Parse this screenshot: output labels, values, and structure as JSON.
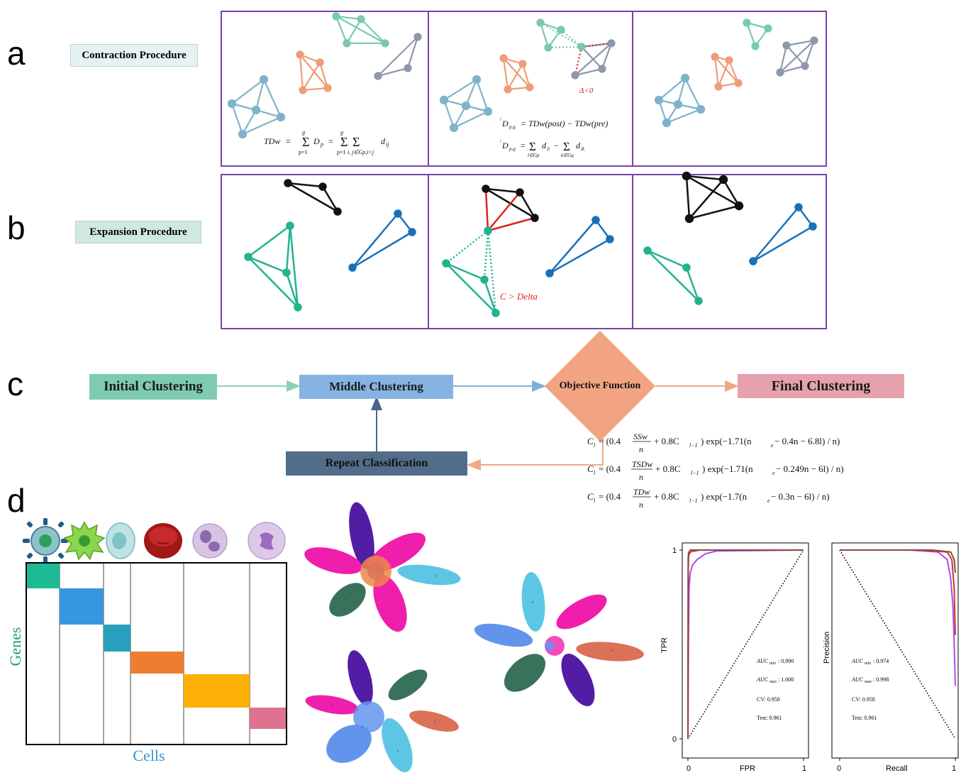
{
  "panels": {
    "a": "a",
    "b": "b",
    "c": "c",
    "d": "d"
  },
  "panel_a": {
    "label": "Contraction Procedure",
    "tdw_formula": "TDw = Σ D_p = Σ Σ d_ij",
    "tdw_formula_parts": {
      "lhs": "TDw",
      "eq": "=",
      "sum_lower_p": "p=1",
      "sum_upper_g": "g",
      "d_p": "D",
      "d_p_sub": "p",
      "sum_lower_ij": "i, j∈Gp,i<j",
      "d_ij": "d",
      "d_ij_sub": "ij"
    },
    "delta_note": "Δ<0",
    "dpq_line1": "D_p,q = TDw(post) − TDw(pre)",
    "dpq_line1_parts": {
      "sup": "1",
      "d": "D",
      "sub": "p,q",
      "rhs": "= TDw(post) − TDw(pre)"
    },
    "dpq_line2_parts": {
      "sup": "1",
      "d": "D",
      "sub": "p,q",
      "eq": "=",
      "sum_l": "l∈Gp",
      "d_il": "d",
      "d_il_sub": "il",
      "minus": "−",
      "sum_k": "k∈Gq",
      "d_ik": "d",
      "d_ik_sub": "ik"
    }
  },
  "panel_b": {
    "label": "Expansion Procedure",
    "note": "C > Delta"
  },
  "panel_c": {
    "initial": "Initial Clustering",
    "middle": "Middle Clustering",
    "objective": "Objective Function",
    "final": "Final Clustering",
    "repeat": "Repeat Classification",
    "formulas": [
      {
        "lhs": "C",
        "lhs_sub": "l",
        "frac_num": "SSw",
        "frac_den": "n",
        "pre": "= (0.4",
        "mid": "+ 0.8C",
        "mid_sub": "l−1",
        "post": ") exp(−1.71(n",
        "post_sub": "e",
        "tail": " − 0.4n − 6.8l) / n)"
      },
      {
        "lhs": "C",
        "lhs_sub": "l",
        "frac_num": "TSDw",
        "frac_den": "n",
        "pre": "= (0.4",
        "mid": "+ 0.8C",
        "mid_sub": "l−1",
        "post": ") exp(−1.71(n",
        "post_sub": "e",
        "tail": " − 0.249n − 6l) / n)"
      },
      {
        "lhs": "C",
        "lhs_sub": "l",
        "frac_num": "TDw",
        "frac_den": "n",
        "pre": "= (0.4",
        "mid": "+ 0.8C",
        "mid_sub": "l−1",
        "post": ") exp(−1.7(n",
        "post_sub": "e",
        "tail": " − 0.3n − 6l) / n)"
      }
    ]
  },
  "panel_d": {
    "heatmap": {
      "ylabel": "Genes",
      "xlabel": "Cells",
      "block_colors": [
        "#1dbb95",
        "#3797de",
        "#2a9fbd",
        "#ee7d32",
        "#fdb005",
        "#de7291"
      ]
    },
    "cell_icons": [
      "t-cell-icon",
      "dendritic-cell-icon",
      "stem-cell-icon",
      "red-blood-cell-icon",
      "granulocyte-icon",
      "monocyte-icon"
    ],
    "umap_labels": [
      "0",
      "1",
      "2",
      "3",
      "4",
      "5",
      "6",
      "7"
    ],
    "cluster_colors": [
      "#f012a8",
      "#4a10a0",
      "#2f6b52",
      "#55c3e3",
      "#5b8fec",
      "#da6a4e",
      "#e78341"
    ]
  },
  "chart_data": [
    {
      "type": "line",
      "title": "",
      "xlabel": "FPR",
      "ylabel": "TPR",
      "xlim": [
        0,
        1
      ],
      "ylim": [
        0,
        1
      ],
      "x_ticks": [
        "0",
        "1"
      ],
      "y_ticks": [
        "0",
        "1"
      ],
      "series": [
        {
          "name": "diagonal",
          "style": "dotted",
          "color": "#000000",
          "x": [
            0,
            1
          ],
          "y": [
            0,
            1
          ]
        },
        {
          "name": "model-purple",
          "color": "#a94bf2",
          "x": [
            0,
            0.005,
            0.01,
            0.02,
            0.04,
            0.08,
            0.15,
            0.25,
            1
          ],
          "y": [
            0,
            0.55,
            0.8,
            0.88,
            0.92,
            0.95,
            0.98,
            0.995,
            1
          ]
        },
        {
          "name": "model-red",
          "color": "#d22f2f",
          "x": [
            0,
            0.003,
            0.006,
            0.02,
            0.1,
            1
          ],
          "y": [
            0,
            0.9,
            0.97,
            0.99,
            1,
            1
          ]
        },
        {
          "name": "model-brown",
          "color": "#8c4a3a",
          "x": [
            0,
            0.002,
            0.005,
            0.02,
            1
          ],
          "y": [
            0,
            0.95,
            0.985,
            1,
            1
          ]
        }
      ],
      "annotations": {
        "auc_min_label": "AUC",
        "auc_min_sub": "min",
        "auc_min_value": ": 0.990",
        "auc_max_label": "AUC",
        "auc_max_sub": "max",
        "auc_max_value": ": 1.000",
        "cv": "CV: 0.958",
        "test": "Test: 0.961"
      }
    },
    {
      "type": "line",
      "title": "",
      "xlabel": "Recall",
      "ylabel": "Precision",
      "xlim": [
        0,
        1
      ],
      "ylim": [
        0,
        1
      ],
      "x_ticks": [
        "0",
        "1"
      ],
      "series": [
        {
          "name": "diagonal",
          "style": "dotted",
          "color": "#000000",
          "x": [
            0,
            1
          ],
          "y": [
            1,
            0
          ]
        },
        {
          "name": "model-purple",
          "color": "#a94bf2",
          "x": [
            0,
            0.6,
            0.85,
            0.93,
            0.96,
            0.98,
            0.99,
            1.0
          ],
          "y": [
            1,
            1,
            0.99,
            0.95,
            0.85,
            0.7,
            0.5,
            0.28
          ]
        },
        {
          "name": "model-red",
          "color": "#d22f2f",
          "x": [
            0,
            0.7,
            0.93,
            0.97,
            0.99,
            1.0
          ],
          "y": [
            1,
            1,
            0.99,
            0.95,
            0.8,
            0.55
          ]
        },
        {
          "name": "model-brown",
          "color": "#8c4a3a",
          "x": [
            0,
            0.8,
            0.96,
            0.99,
            1.0
          ],
          "y": [
            1,
            1,
            0.99,
            0.95,
            0.88
          ]
        }
      ],
      "annotations": {
        "auc_min_label": "AUC",
        "auc_min_sub": "min",
        "auc_min_value": ": 0.974",
        "auc_max_label": "AUC",
        "auc_max_sub": "max",
        "auc_max_value": ": 0.998",
        "cv": "CV: 0.958",
        "test": "Test: 0.961"
      }
    }
  ]
}
